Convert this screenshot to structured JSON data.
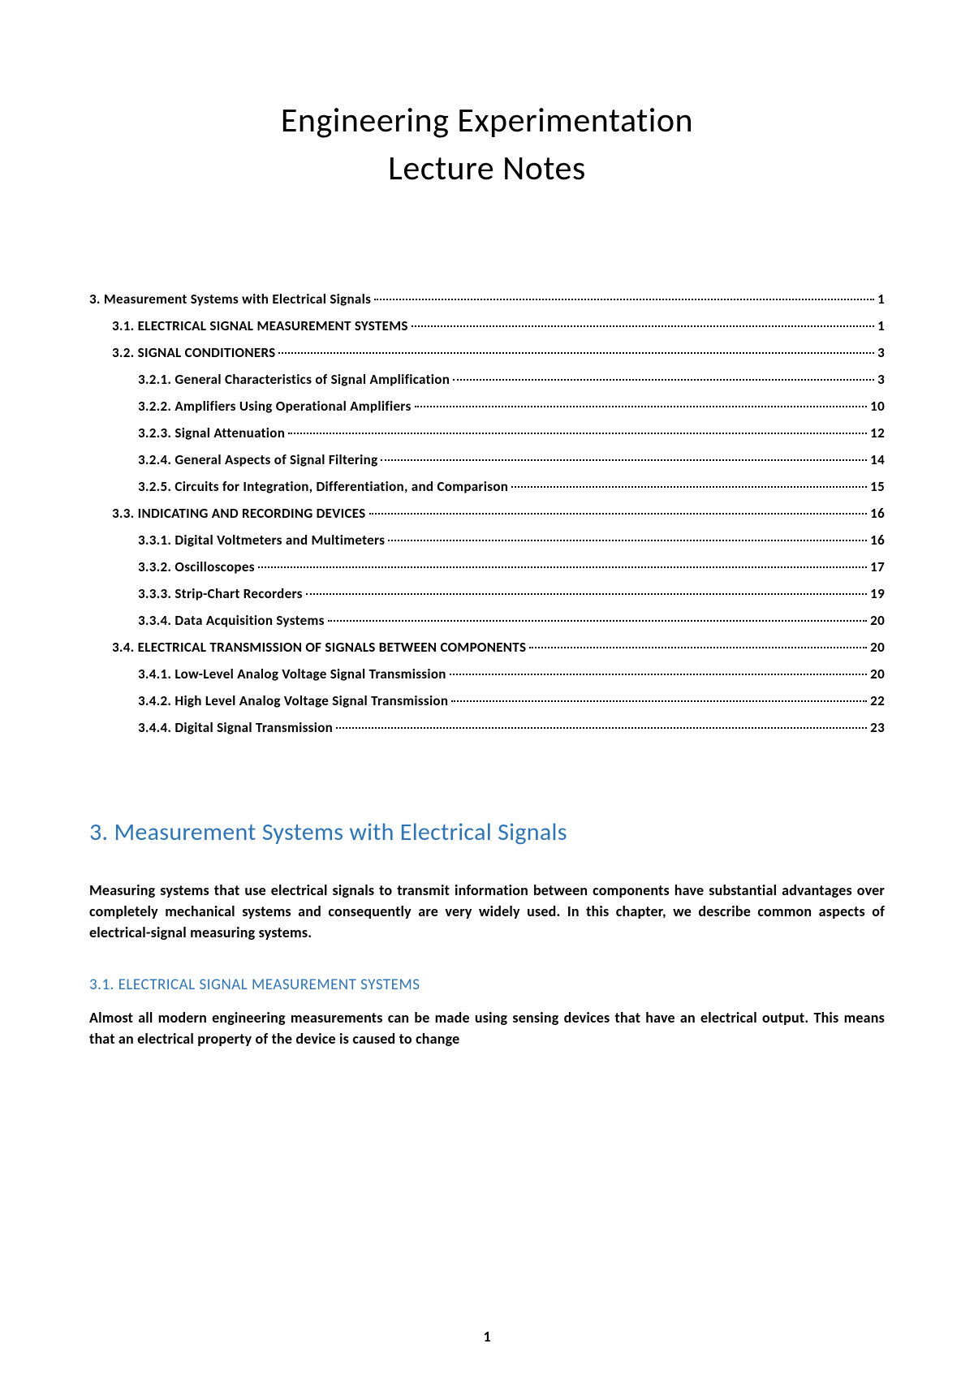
{
  "title_line1": "Engineering Experimentation",
  "title_line2": "Lecture Notes",
  "toc": [
    {
      "level": 0,
      "label": "3. Measurement Systems with Electrical Signals",
      "page": "1"
    },
    {
      "level": 1,
      "label": "3.1. ELECTRICAL SIGNAL MEASUREMENT SYSTEMS",
      "page": "1"
    },
    {
      "level": 1,
      "label": "3.2. SIGNAL CONDITIONERS",
      "page": "3"
    },
    {
      "level": 2,
      "label": "3.2.1. General Characteristics of Signal Amplification",
      "page": "3"
    },
    {
      "level": 2,
      "label": "3.2.2. Amplifiers Using Operational Amplifiers",
      "page": "10"
    },
    {
      "level": 2,
      "label": "3.2.3. Signal Attenuation",
      "page": "12"
    },
    {
      "level": 2,
      "label": "3.2.4. General Aspects of Signal Filtering",
      "page": "14"
    },
    {
      "level": 2,
      "label": "3.2.5. Circuits for Integration, Differentiation, and Comparison",
      "page": "15"
    },
    {
      "level": 1,
      "label": "3.3. INDICATING AND RECORDING DEVICES",
      "page": "16"
    },
    {
      "level": 2,
      "label": "3.3.1. Digital Voltmeters and Multimeters",
      "page": "16"
    },
    {
      "level": 2,
      "label": "3.3.2. Oscilloscopes",
      "page": "17"
    },
    {
      "level": 2,
      "label": "3.3.3. Strip-Chart Recorders",
      "page": "19"
    },
    {
      "level": 2,
      "label": "3.3.4. Data Acquisition Systems",
      "page": "20"
    },
    {
      "level": 1,
      "label": "3.4. ELECTRICAL TRANSMISSION OF SIGNALS BETWEEN COMPONENTS",
      "page": "20"
    },
    {
      "level": 2,
      "label": "3.4.1. Low-Level Analog Voltage Signal Transmission",
      "page": "20"
    },
    {
      "level": 2,
      "label": "3.4.2. High Level Analog Voltage Signal Transmission",
      "page": "22"
    },
    {
      "level": 2,
      "label": "3.4.4. Digital Signal Transmission",
      "page": "23"
    }
  ],
  "section_heading": "3. Measurement Systems with Electrical Signals",
  "body_p1": "Measuring systems that use electrical signals to transmit information between components have substantial advantages over completely mechanical systems and consequently are very widely used. In this chapter, we describe common aspects of electrical-signal measuring systems.",
  "subsection_heading": "3.1. ELECTRICAL SIGNAL MEASUREMENT SYSTEMS",
  "body_p2": "Almost all modern engineering measurements can be made using sensing devices that have an electrical output. This means that an electrical property of the device is caused to change",
  "page_number": "1",
  "colors": {
    "heading_blue": "#2e74b5",
    "text_black": "#000000",
    "background": "#ffffff"
  },
  "typography": {
    "title_fontsize": 42,
    "section_heading_fontsize": 30,
    "subsection_heading_fontsize": 19,
    "body_fontsize": 18,
    "toc_fontsize": 17
  }
}
